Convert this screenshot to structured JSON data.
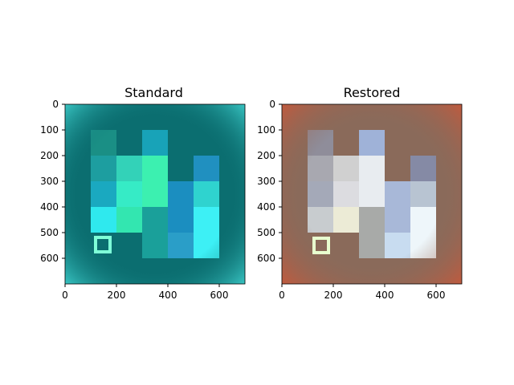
{
  "panels": [
    {
      "title": "Standard",
      "x_ticks": [
        "0",
        "200",
        "400",
        "600"
      ],
      "y_ticks": [
        "0",
        "100",
        "200",
        "300",
        "400",
        "500",
        "600"
      ],
      "colors": {
        "background": "#0b6e70",
        "edge_glow": "#3ccac8",
        "square": "#7fffd8"
      },
      "blocks": [
        {
          "c": "#1a8f85"
        },
        {
          "c": "#18a3b8"
        },
        {
          "c": "#2090c0"
        },
        {
          "c": "#1d9ea0"
        },
        {
          "c": "#1aa9c0"
        },
        {
          "c": "#33d2b8"
        },
        {
          "c": "#3cf0b0"
        },
        {
          "c": "#2fd3cf"
        },
        {
          "c": "#2fe9ee"
        },
        {
          "c": "#36ebc6"
        },
        {
          "c": "#2dd7a6"
        },
        {
          "c": "#1b8ec0"
        },
        {
          "c": "#36f0f2"
        },
        {
          "c": "#33e6b0"
        },
        {
          "c": "#1aa09a"
        },
        {
          "c": "#2a9ec8"
        },
        {
          "c": "#3df0f5"
        }
      ]
    },
    {
      "title": "Restored",
      "x_ticks": [
        "0",
        "200",
        "400",
        "600"
      ],
      "y_ticks": [
        "0",
        "100",
        "200",
        "300",
        "400",
        "500",
        "600"
      ],
      "colors": {
        "background": "#8a6a5a",
        "edge_glow": "#c8583a",
        "square": "#e8ffcf"
      },
      "blocks": [
        {
          "c": "#8f8d9a"
        },
        {
          "c": "#9fb2d8"
        },
        {
          "c": "#858aa5"
        },
        {
          "c": "#a8a8b0"
        },
        {
          "c": "#a4a9b8"
        },
        {
          "c": "#d0d0d0"
        },
        {
          "c": "#e8ecf0"
        },
        {
          "c": "#b8c4d2"
        },
        {
          "c": "#c8cccf"
        },
        {
          "c": "#dcdce0"
        },
        {
          "c": "#dde6f0"
        },
        {
          "c": "#a8b8d8"
        },
        {
          "c": "#f2f4ea"
        },
        {
          "c": "#ecebd6"
        },
        {
          "c": "#a8aaa8"
        },
        {
          "c": "#c8dcf0"
        },
        {
          "c": "#eef6fa"
        }
      ]
    }
  ]
}
